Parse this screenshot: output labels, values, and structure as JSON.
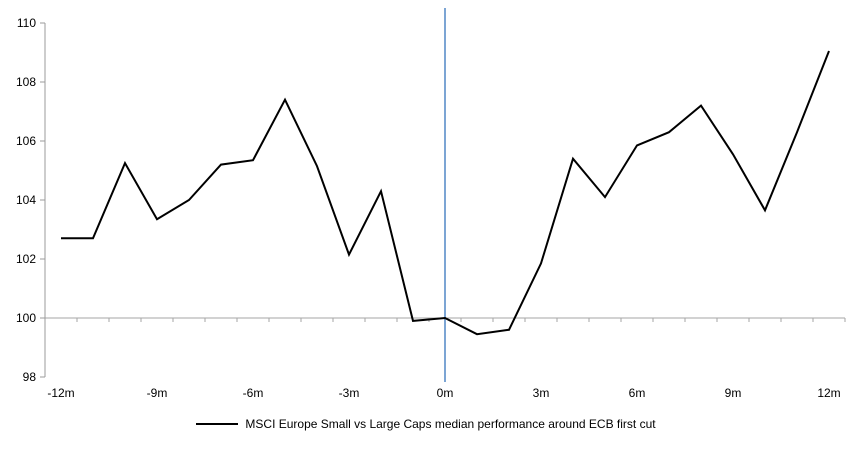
{
  "chart_data": {
    "type": "line",
    "title": "",
    "xlabel": "",
    "ylabel": "",
    "x": [
      -12,
      -11,
      -10,
      -9,
      -8,
      -7,
      -6,
      -5,
      -4,
      -3,
      -2,
      -1,
      0,
      1,
      2,
      3,
      4,
      5,
      6,
      7,
      8,
      9,
      10,
      11,
      12
    ],
    "series": [
      {
        "name": "MSCI Europe Small vs Large Caps median performance around ECB first cut",
        "color": "#000000",
        "values": [
          102.7,
          102.7,
          105.25,
          103.35,
          104.0,
          105.2,
          105.35,
          107.4,
          105.15,
          102.15,
          104.3,
          99.9,
          100.0,
          99.45,
          99.6,
          101.85,
          105.4,
          104.1,
          105.85,
          106.3,
          107.2,
          105.55,
          103.65,
          106.3,
          109.05
        ]
      }
    ],
    "ylim": [
      98,
      110
    ],
    "y_ticks": [
      98,
      100,
      102,
      104,
      106,
      108,
      110
    ],
    "x_tick_positions": [
      -12,
      -9,
      -6,
      -3,
      0,
      3,
      6,
      9,
      12
    ],
    "x_tick_labels": [
      "-12m",
      "-9m",
      "-6m",
      "-3m",
      "0m",
      "3m",
      "6m",
      "9m",
      "12m"
    ],
    "baseline_value": 100,
    "event_line_x": 0,
    "grid": false,
    "legend_position": "bottom-center",
    "colors": {
      "series_line": "#000000",
      "event_line": "#7CA5D4",
      "value_axis": "#9b9b9b",
      "baseline_axis": "#a6a6a6",
      "tick_label": "#000000"
    }
  },
  "legend": {
    "label": "MSCI Europe Small vs Large Caps median performance around ECB first cut"
  }
}
